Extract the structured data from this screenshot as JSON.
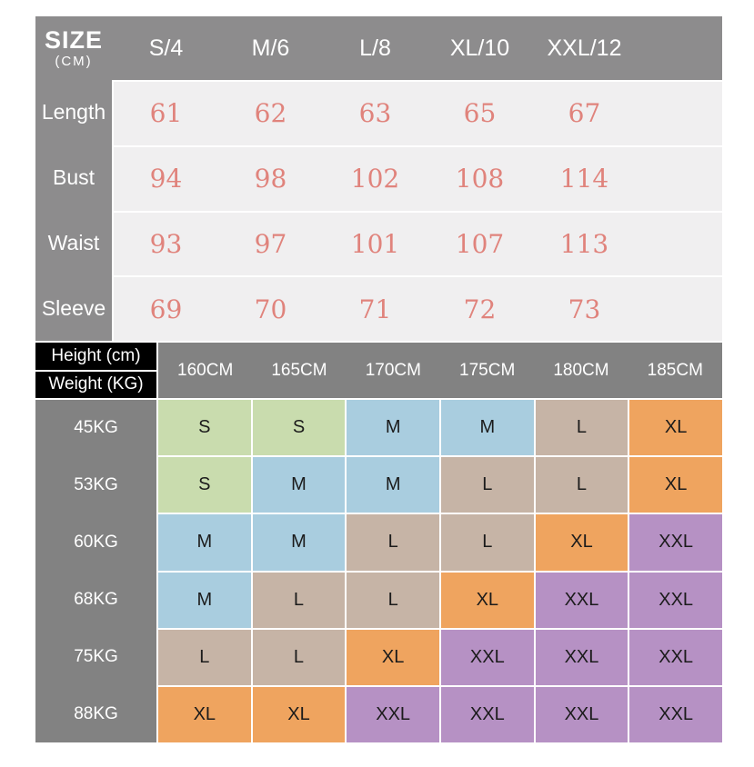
{
  "theme": {
    "page_bg": "#ffffff",
    "t1_gray": "#8d8c8d",
    "t1_row_bg": "#f0eff0",
    "salmon": "#e0837c",
    "t2_gray": "#828282",
    "corner_bg": "#000000",
    "cell_text": "#1b1b1b",
    "header_text": "#ffffff"
  },
  "size_table": {
    "corner": {
      "title": "SIZE",
      "subtitle": "(CM)"
    },
    "columns": [
      "S/4",
      "M/6",
      "L/8",
      "XL/10",
      "XXL/12"
    ],
    "rows": [
      {
        "label": "Length",
        "values": [
          "61",
          "62",
          "63",
          "65",
          "67"
        ]
      },
      {
        "label": "Bust",
        "values": [
          "94",
          "98",
          "102",
          "108",
          "114"
        ]
      },
      {
        "label": "Waist",
        "values": [
          "93",
          "97",
          "101",
          "107",
          "113"
        ]
      },
      {
        "label": "Sleeve",
        "values": [
          "69",
          "70",
          "71",
          "72",
          "73"
        ]
      }
    ]
  },
  "fit_table": {
    "corner": {
      "top": "Height (cm)",
      "bottom": "Weight (KG)"
    },
    "columns": [
      "160CM",
      "165CM",
      "170CM",
      "175CM",
      "180CM",
      "185CM"
    ],
    "rows": [
      {
        "label": "45KG",
        "cells": [
          "S",
          "S",
          "M",
          "M",
          "L",
          "XL"
        ]
      },
      {
        "label": "53KG",
        "cells": [
          "S",
          "M",
          "M",
          "L",
          "L",
          "XL"
        ]
      },
      {
        "label": "60KG",
        "cells": [
          "M",
          "M",
          "L",
          "L",
          "XL",
          "XXL"
        ]
      },
      {
        "label": "68KG",
        "cells": [
          "M",
          "L",
          "L",
          "XL",
          "XXL",
          "XXL"
        ]
      },
      {
        "label": "75KG",
        "cells": [
          "L",
          "L",
          "XL",
          "XXL",
          "XXL",
          "XXL"
        ]
      },
      {
        "label": "88KG",
        "cells": [
          "XL",
          "XL",
          "XXL",
          "XXL",
          "XXL",
          "XXL"
        ]
      }
    ],
    "size_colors": {
      "S": "#c9dcae",
      "M": "#a9cddf",
      "L": "#c6b4a6",
      "XL": "#efa45f",
      "XXL": "#b691c4"
    }
  },
  "chart_data": [
    {
      "type": "table",
      "title": "SIZE (CM)",
      "columns": [
        "S/4",
        "M/6",
        "L/8",
        "XL/10",
        "XXL/12"
      ],
      "rows": [
        {
          "label": "Length",
          "values": [
            61,
            62,
            63,
            65,
            67
          ]
        },
        {
          "label": "Bust",
          "values": [
            94,
            98,
            102,
            108,
            114
          ]
        },
        {
          "label": "Waist",
          "values": [
            93,
            97,
            101,
            107,
            113
          ]
        },
        {
          "label": "Sleeve",
          "values": [
            69,
            70,
            71,
            72,
            73
          ]
        }
      ]
    },
    {
      "type": "table",
      "title": "Height (cm) / Weight (KG) size matrix",
      "columns": [
        "160CM",
        "165CM",
        "170CM",
        "175CM",
        "180CM",
        "185CM"
      ],
      "rows": [
        {
          "label": "45KG",
          "values": [
            "S",
            "S",
            "M",
            "M",
            "L",
            "XL"
          ]
        },
        {
          "label": "53KG",
          "values": [
            "S",
            "M",
            "M",
            "L",
            "L",
            "XL"
          ]
        },
        {
          "label": "60KG",
          "values": [
            "M",
            "M",
            "L",
            "L",
            "XL",
            "XXL"
          ]
        },
        {
          "label": "68KG",
          "values": [
            "M",
            "L",
            "L",
            "XL",
            "XXL",
            "XXL"
          ]
        },
        {
          "label": "75KG",
          "values": [
            "L",
            "L",
            "XL",
            "XXL",
            "XXL",
            "XXL"
          ]
        },
        {
          "label": "88KG",
          "values": [
            "XL",
            "XL",
            "XXL",
            "XXL",
            "XXL",
            "XXL"
          ]
        }
      ]
    }
  ]
}
